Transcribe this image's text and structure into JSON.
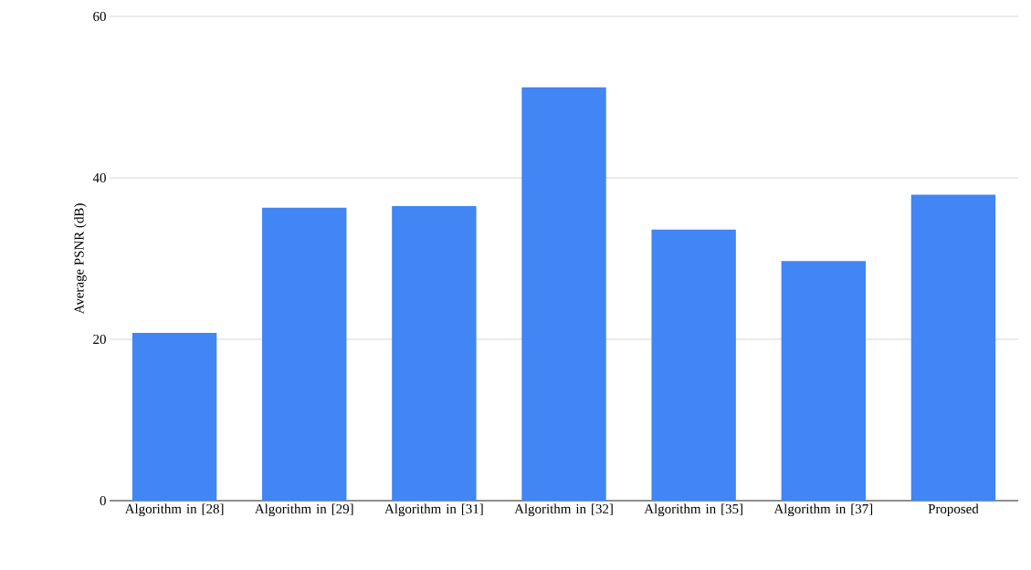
{
  "chart_data": {
    "type": "bar",
    "ylabel": "Average PSNR (dB)",
    "categories": [
      "Algorithm in [28]",
      "Algorithm in [29]",
      "Algorithm in [31]",
      "Algorithm in [32]",
      "Algorithm in [35]",
      "Algorithm in [37]",
      "Proposed"
    ],
    "values": [
      20.8,
      36.3,
      36.5,
      51.2,
      33.6,
      29.7,
      37.9
    ],
    "color": "#4285f4",
    "ylim": [
      0,
      60
    ],
    "yticks": [
      0,
      20,
      40,
      60
    ],
    "grid": "y"
  }
}
